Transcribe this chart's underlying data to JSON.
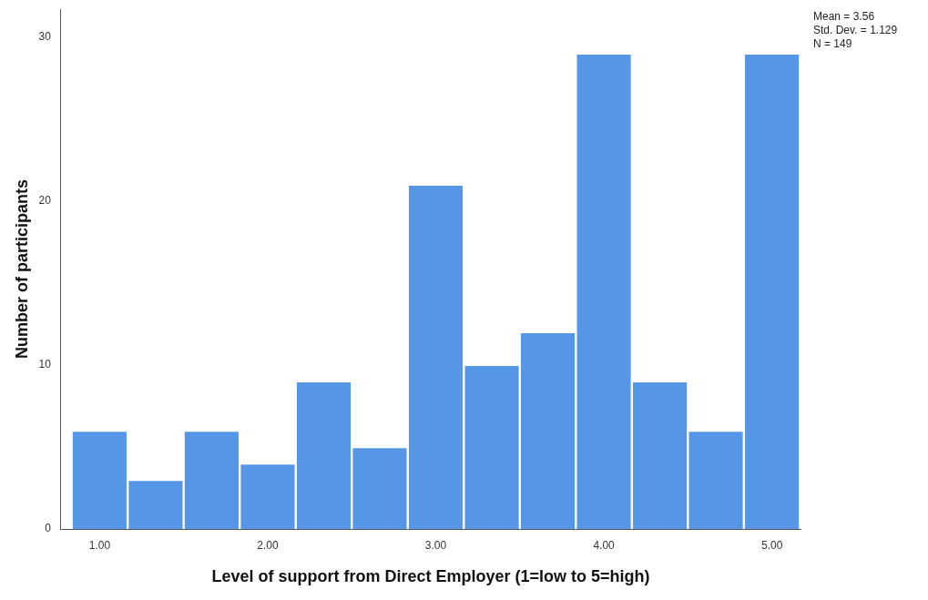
{
  "chart_data": {
    "type": "histogram",
    "xlabel": "Level of support from Direct Employer (1=low to 5=high)",
    "ylabel": "Number of participants",
    "bins": [
      0.833,
      1.167,
      1.5,
      1.833,
      2.167,
      2.5,
      2.833,
      3.167,
      3.5,
      3.833,
      4.167,
      4.5,
      4.833,
      5.167
    ],
    "values": [
      6,
      3,
      6,
      4,
      9,
      5,
      21,
      10,
      12,
      29,
      9,
      6,
      29
    ],
    "color": "#5596e6",
    "xlim": [
      0.77,
      5.17
    ],
    "xticks": [
      {
        "value": 1,
        "label": "1.00"
      },
      {
        "value": 2,
        "label": "2.00"
      },
      {
        "value": 3,
        "label": "3.00"
      },
      {
        "value": 4,
        "label": "4.00"
      },
      {
        "value": 5,
        "label": "5.00"
      }
    ],
    "ylim": [
      0,
      31.7
    ],
    "yticks": [
      0,
      10,
      20,
      30
    ],
    "grid": false,
    "annotations": [
      "Mean = 3.56",
      "Std. Dev. = 1.129",
      "N = 149"
    ]
  }
}
